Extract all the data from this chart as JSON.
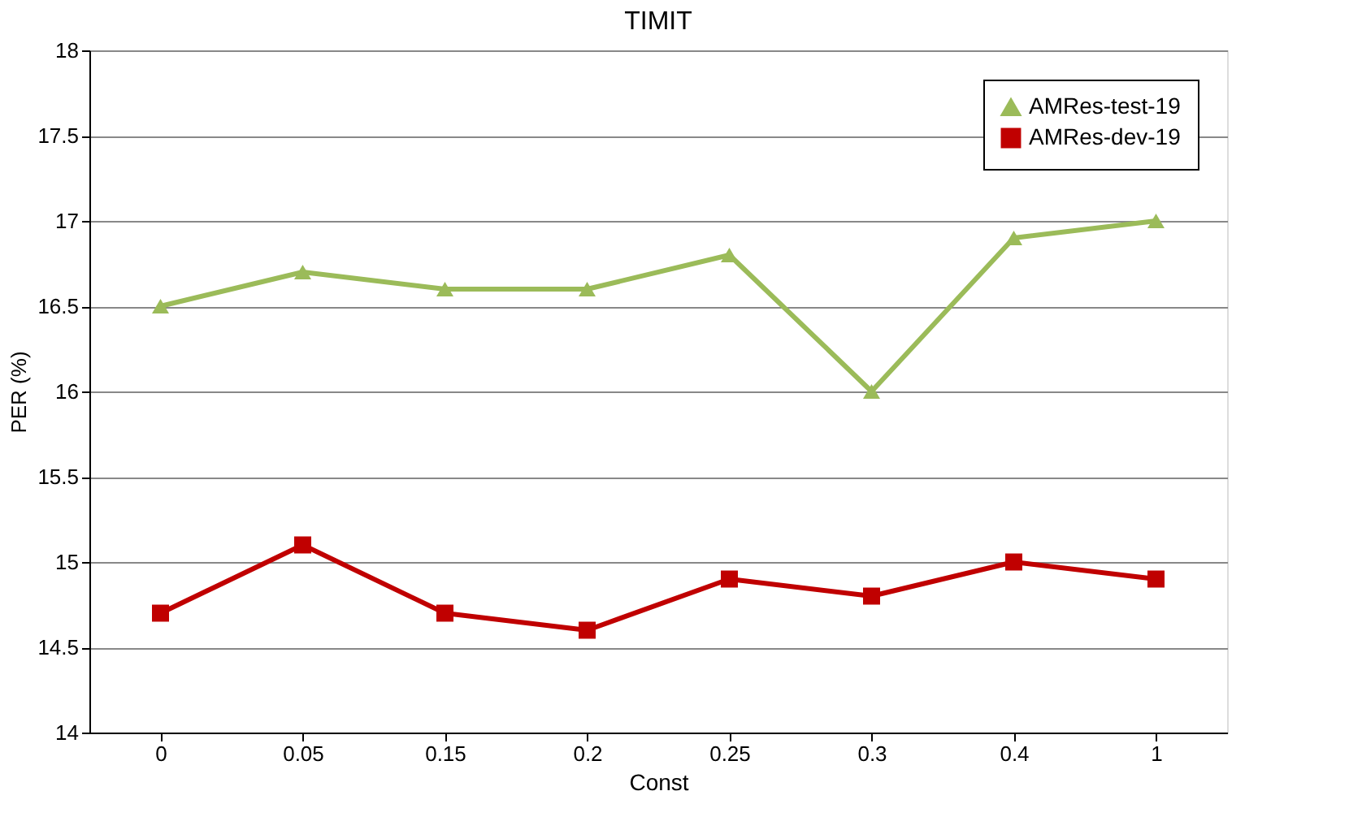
{
  "chart_data": {
    "type": "line",
    "title": "TIMIT",
    "xlabel": "Const",
    "ylabel": "PER (%)",
    "categories": [
      "0",
      "0.05",
      "0.15",
      "0.2",
      "0.25",
      "0.3",
      "0.4",
      "1"
    ],
    "series": [
      {
        "name": "AMRes-test-19",
        "color": "#9bbb59",
        "marker": "triangle",
        "values": [
          16.5,
          16.7,
          16.6,
          16.6,
          16.8,
          16.0,
          16.9,
          17.0
        ]
      },
      {
        "name": "AMRes-dev-19",
        "color": "#c00000",
        "marker": "square",
        "values": [
          14.7,
          15.1,
          14.7,
          14.6,
          14.9,
          14.8,
          15.0,
          14.9
        ]
      }
    ],
    "ylim": [
      14,
      18
    ],
    "yticks": [
      14,
      14.5,
      15,
      15.5,
      16,
      16.5,
      17,
      17.5,
      18
    ],
    "grid": "y",
    "legend": "top right",
    "line_style": "solid"
  }
}
